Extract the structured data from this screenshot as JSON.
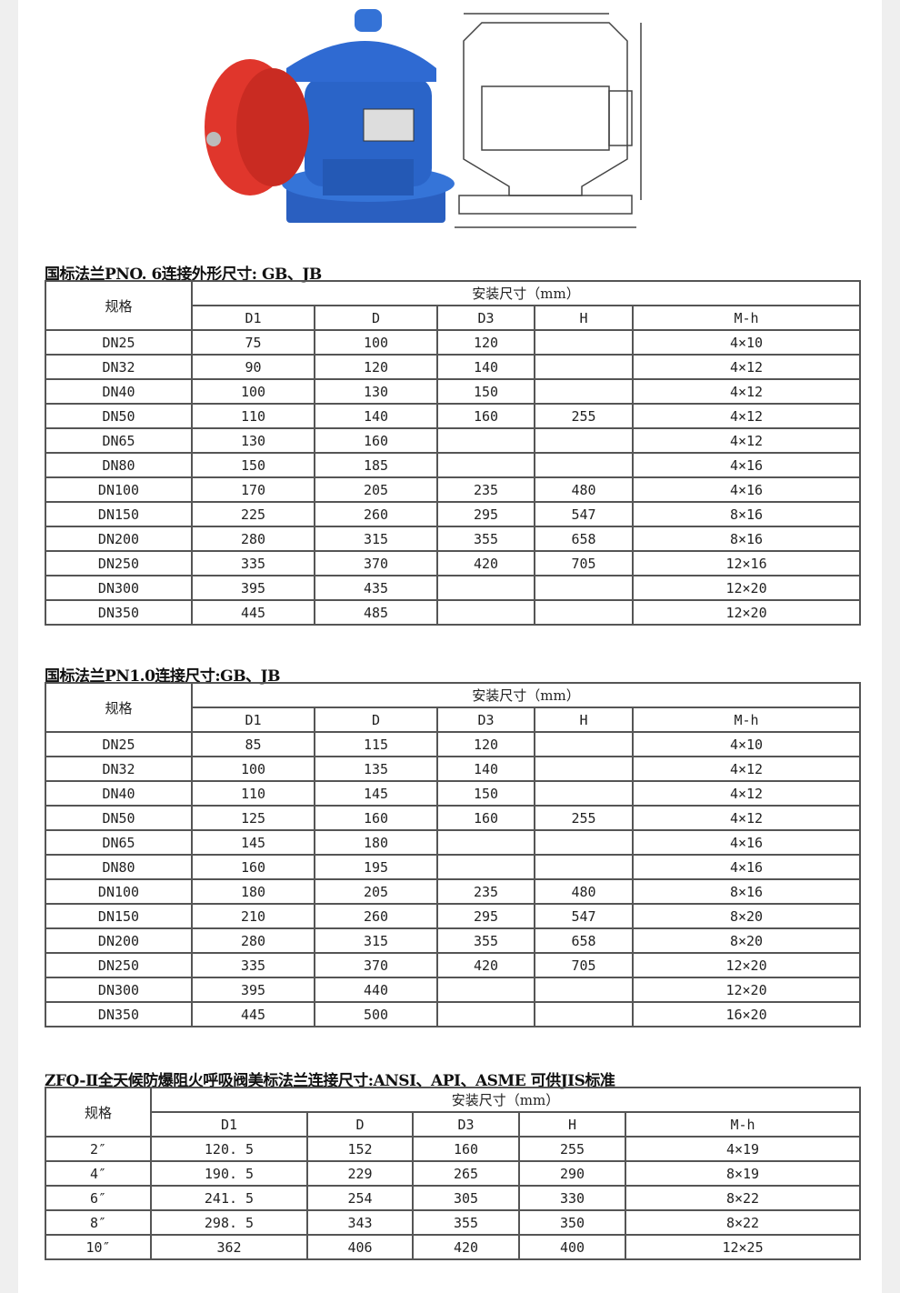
{
  "tables": [
    {
      "title": "国标法兰PNO. 6连接外形尺寸: GB、JB",
      "spec_header": "规格",
      "group_header": "安装尺寸（mm）",
      "columns": [
        "D1",
        "D",
        "D3",
        "H",
        "M-h"
      ],
      "rows": [
        [
          "DN25",
          "75",
          "100",
          "120",
          "",
          "4×10"
        ],
        [
          "DN32",
          "90",
          "120",
          "140",
          "",
          "4×12"
        ],
        [
          "DN40",
          "100",
          "130",
          "150",
          "",
          "4×12"
        ],
        [
          "DN50",
          "110",
          "140",
          "160",
          "255",
          "4×12"
        ],
        [
          "DN65",
          "130",
          "160",
          "",
          "",
          "4×12"
        ],
        [
          "DN80",
          "150",
          "185",
          "",
          "",
          "4×16"
        ],
        [
          "DN100",
          "170",
          "205",
          "235",
          "480",
          "4×16"
        ],
        [
          "DN150",
          "225",
          "260",
          "295",
          "547",
          "8×16"
        ],
        [
          "DN200",
          "280",
          "315",
          "355",
          "658",
          "8×16"
        ],
        [
          "DN250",
          "335",
          "370",
          "420",
          "705",
          "12×16"
        ],
        [
          "DN300",
          "395",
          "435",
          "",
          "",
          "12×20"
        ],
        [
          "DN350",
          "445",
          "485",
          "",
          "",
          "12×20"
        ]
      ]
    },
    {
      "title": "国标法兰PN1.0连接尺寸:GB、JB",
      "spec_header": "规格",
      "group_header": "安装尺寸（mm）",
      "columns": [
        "D1",
        "D",
        "D3",
        "H",
        "M-h"
      ],
      "rows": [
        [
          "DN25",
          "85",
          "115",
          "120",
          "",
          "4×10"
        ],
        [
          "DN32",
          "100",
          "135",
          "140",
          "",
          "4×12"
        ],
        [
          "DN40",
          "110",
          "145",
          "150",
          "",
          "4×12"
        ],
        [
          "DN50",
          "125",
          "160",
          "160",
          "255",
          "4×12"
        ],
        [
          "DN65",
          "145",
          "180",
          "",
          "",
          "4×16"
        ],
        [
          "DN80",
          "160",
          "195",
          "",
          "",
          "4×16"
        ],
        [
          "DN100",
          "180",
          "205",
          "235",
          "480",
          "8×16"
        ],
        [
          "DN150",
          "210",
          "260",
          "295",
          "547",
          "8×20"
        ],
        [
          "DN200",
          "280",
          "315",
          "355",
          "658",
          "8×20"
        ],
        [
          "DN250",
          "335",
          "370",
          "420",
          "705",
          "12×20"
        ],
        [
          "DN300",
          "395",
          "440",
          "",
          "",
          "12×20"
        ],
        [
          "DN350",
          "445",
          "500",
          "",
          "",
          "16×20"
        ]
      ]
    },
    {
      "title": "ZFQ-Ⅱ全天候防爆阻火呼吸阀美标法兰连接尺寸:ANSI、API、ASME 可供JIS标准",
      "spec_header": "规格",
      "group_header": "安装尺寸（mm）",
      "columns": [
        "D1",
        "D",
        "D3",
        "H",
        "M-h"
      ],
      "rows": [
        [
          "2″",
          "120. 5",
          "152",
          "160",
          "255",
          "4×19"
        ],
        [
          "4″",
          "190. 5",
          "229",
          "265",
          "290",
          "8×19"
        ],
        [
          "6″",
          "241. 5",
          "254",
          "305",
          "330",
          "8×22"
        ],
        [
          "8″",
          "298. 5",
          "343",
          "355",
          "350",
          "8×22"
        ],
        [
          "10″",
          "362",
          "406",
          "420",
          "400",
          "12×25"
        ]
      ]
    }
  ],
  "colors": {
    "valve_body": "#2a64c8",
    "valve_cap": "#e0362c"
  }
}
